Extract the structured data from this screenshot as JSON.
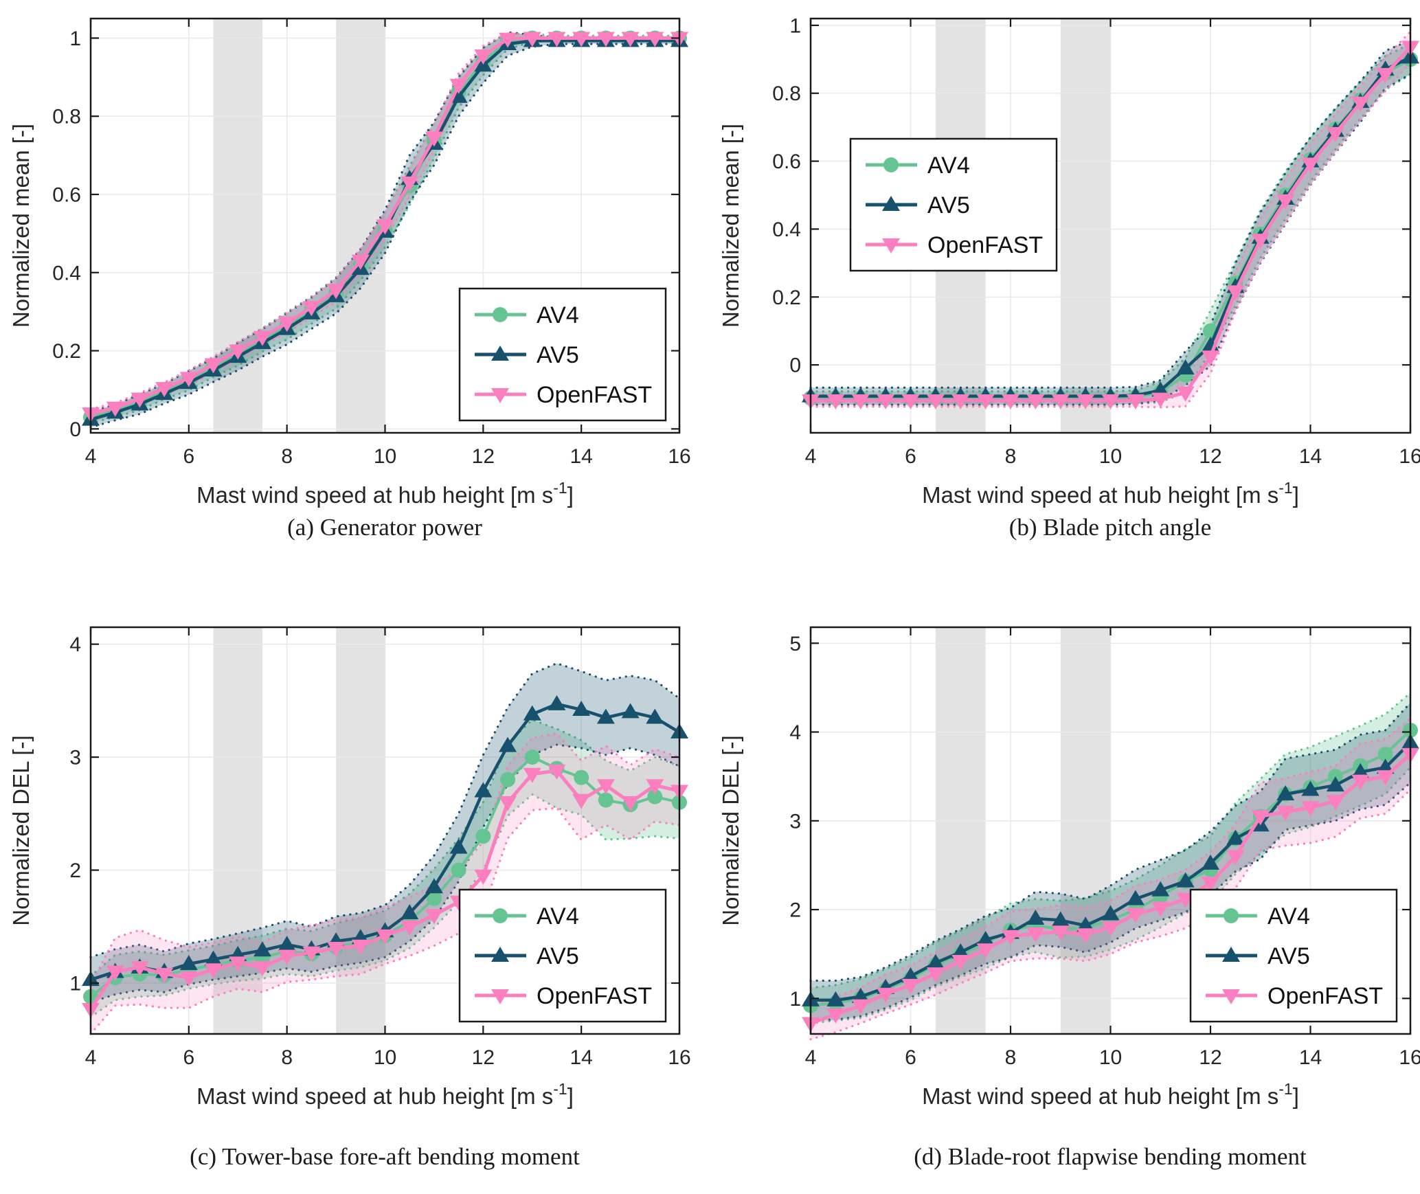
{
  "page": {
    "background": "#ffffff"
  },
  "colors": {
    "AV4": "#66C493",
    "AV5": "#17516E",
    "OpenFAST": "#FB7EBE",
    "band_gray": "#E3E3E3",
    "grid": "#EAEAEA",
    "axis": "#1A1A1A",
    "tick_text": "#262626"
  },
  "highlight_bands": [
    [
      6.5,
      7.5
    ],
    [
      9.0,
      10.0
    ]
  ],
  "x_values": [
    4,
    4.5,
    5,
    5.5,
    6,
    6.5,
    7,
    7.5,
    8,
    8.5,
    9,
    9.5,
    10,
    10.5,
    11,
    11.5,
    12,
    12.5,
    13,
    13.5,
    14,
    14.5,
    15,
    15.5,
    16
  ],
  "chart_data": [
    {
      "id": "a",
      "type": "line",
      "caption": "(a) Generator power",
      "ylabel": "Normalized mean [-]",
      "xlabel_main": "Mast wind speed at hub height [m s",
      "xlabel_sup": "-1",
      "xlabel_end": "]",
      "xlim": [
        4,
        16
      ],
      "ylim": [
        -0.01,
        1.05
      ],
      "xticks": [
        4,
        6,
        8,
        10,
        12,
        14,
        16
      ],
      "yticks": [
        0,
        0.2,
        0.4,
        0.6,
        0.8,
        1
      ],
      "grid": true,
      "legend_pos": "lower-right",
      "series": [
        {
          "name": "AV4",
          "marker": "circle",
          "values": [
            0.03,
            0.046,
            0.068,
            0.096,
            0.124,
            0.158,
            0.192,
            0.228,
            0.264,
            0.304,
            0.348,
            0.42,
            0.51,
            0.622,
            0.738,
            0.862,
            0.94,
            0.992,
            1.0,
            1.0,
            1.0,
            1.0,
            1.0,
            1.0,
            1.0
          ],
          "band": [
            0.015,
            0.015,
            0.02,
            0.02,
            0.025,
            0.025,
            0.03,
            0.03,
            0.035,
            0.035,
            0.04,
            0.04,
            0.045,
            0.05,
            0.045,
            0.04,
            0.035,
            0.02,
            0.01,
            0.006,
            0.006,
            0.006,
            0.006,
            0.006,
            0.006
          ]
        },
        {
          "name": "AV5",
          "marker": "triangle-up",
          "values": [
            0.024,
            0.042,
            0.063,
            0.09,
            0.118,
            0.15,
            0.185,
            0.22,
            0.256,
            0.296,
            0.34,
            0.41,
            0.505,
            0.64,
            0.73,
            0.85,
            0.93,
            0.985,
            0.993,
            0.993,
            0.993,
            0.993,
            0.993,
            0.993,
            0.993
          ],
          "band": [
            0.02,
            0.02,
            0.025,
            0.025,
            0.03,
            0.03,
            0.035,
            0.035,
            0.04,
            0.04,
            0.045,
            0.05,
            0.055,
            0.06,
            0.055,
            0.05,
            0.045,
            0.03,
            0.015,
            0.008,
            0.008,
            0.008,
            0.008,
            0.008,
            0.008
          ]
        },
        {
          "name": "OpenFAST",
          "marker": "triangle-down",
          "values": [
            0.039,
            0.054,
            0.077,
            0.104,
            0.13,
            0.165,
            0.2,
            0.235,
            0.271,
            0.311,
            0.355,
            0.43,
            0.52,
            0.63,
            0.745,
            0.88,
            0.955,
            0.998,
            1.0,
            1.0,
            1.0,
            1.0,
            1.0,
            1.0,
            1.0
          ],
          "band": [
            0.012,
            0.012,
            0.015,
            0.015,
            0.02,
            0.02,
            0.022,
            0.022,
            0.025,
            0.025,
            0.03,
            0.03,
            0.035,
            0.035,
            0.035,
            0.03,
            0.025,
            0.015,
            0.006,
            0.004,
            0.004,
            0.004,
            0.004,
            0.004,
            0.004
          ]
        }
      ]
    },
    {
      "id": "b",
      "type": "line",
      "caption": "(b) Blade pitch angle",
      "ylabel": "Normalized mean [-]",
      "xlabel_main": "Mast wind speed at hub height [m s",
      "xlabel_sup": "-1",
      "xlabel_end": "]",
      "xlim": [
        4,
        16
      ],
      "ylim": [
        -0.2,
        1.02
      ],
      "xticks": [
        4,
        6,
        8,
        10,
        12,
        14,
        16
      ],
      "yticks": [
        0,
        0.2,
        0.4,
        0.6,
        0.8,
        1
      ],
      "grid": true,
      "legend_pos": "mid-left",
      "series": [
        {
          "name": "AV4",
          "marker": "circle",
          "values": [
            -0.098,
            -0.098,
            -0.098,
            -0.098,
            -0.098,
            -0.098,
            -0.098,
            -0.098,
            -0.098,
            -0.098,
            -0.098,
            -0.098,
            -0.098,
            -0.095,
            -0.08,
            -0.03,
            0.1,
            0.24,
            0.385,
            0.5,
            0.605,
            0.695,
            0.78,
            0.86,
            0.9
          ],
          "band": [
            0.02,
            0.02,
            0.02,
            0.02,
            0.02,
            0.02,
            0.02,
            0.02,
            0.02,
            0.02,
            0.02,
            0.02,
            0.02,
            0.02,
            0.03,
            0.05,
            0.06,
            0.065,
            0.07,
            0.07,
            0.065,
            0.06,
            0.055,
            0.05,
            0.045
          ]
        },
        {
          "name": "AV5",
          "marker": "triangle-up",
          "values": [
            -0.092,
            -0.092,
            -0.092,
            -0.092,
            -0.092,
            -0.092,
            -0.092,
            -0.092,
            -0.092,
            -0.092,
            -0.092,
            -0.092,
            -0.092,
            -0.09,
            -0.075,
            -0.01,
            0.057,
            0.23,
            0.375,
            0.49,
            0.6,
            0.69,
            0.775,
            0.87,
            0.906
          ],
          "band": [
            0.025,
            0.025,
            0.025,
            0.025,
            0.025,
            0.025,
            0.025,
            0.025,
            0.025,
            0.025,
            0.025,
            0.025,
            0.025,
            0.025,
            0.03,
            0.05,
            0.06,
            0.07,
            0.075,
            0.075,
            0.07,
            0.065,
            0.06,
            0.055,
            0.05
          ]
        },
        {
          "name": "OpenFAST",
          "marker": "triangle-down",
          "values": [
            -0.105,
            -0.105,
            -0.105,
            -0.105,
            -0.105,
            -0.105,
            -0.105,
            -0.105,
            -0.105,
            -0.105,
            -0.105,
            -0.105,
            -0.105,
            -0.105,
            -0.1,
            -0.082,
            0.024,
            0.216,
            0.368,
            0.484,
            0.592,
            0.682,
            0.772,
            0.856,
            0.936
          ],
          "band": [
            0.018,
            0.018,
            0.018,
            0.018,
            0.018,
            0.018,
            0.018,
            0.018,
            0.018,
            0.018,
            0.018,
            0.018,
            0.018,
            0.018,
            0.025,
            0.04,
            0.05,
            0.06,
            0.065,
            0.065,
            0.06,
            0.055,
            0.05,
            0.05,
            0.045
          ]
        }
      ]
    },
    {
      "id": "c",
      "type": "line",
      "caption": "(c) Tower-base fore-aft bending moment",
      "ylabel": "Normalized DEL [-]",
      "xlabel_main": "Mast wind speed at hub height [m s",
      "xlabel_sup": "-1",
      "xlabel_end": "]",
      "xlim": [
        4,
        16
      ],
      "ylim": [
        0.55,
        4.15
      ],
      "xticks": [
        4,
        6,
        8,
        10,
        12,
        14,
        16
      ],
      "yticks": [
        1,
        2,
        3,
        4
      ],
      "grid": true,
      "legend_pos": "lower-right",
      "series": [
        {
          "name": "AV4",
          "marker": "circle",
          "values": [
            0.88,
            1.05,
            1.08,
            1.07,
            1.12,
            1.16,
            1.2,
            1.23,
            1.28,
            1.26,
            1.32,
            1.36,
            1.42,
            1.55,
            1.75,
            2.0,
            2.3,
            2.8,
            3.0,
            2.9,
            2.82,
            2.62,
            2.58,
            2.65,
            2.6
          ],
          "band": [
            0.18,
            0.2,
            0.2,
            0.18,
            0.17,
            0.17,
            0.18,
            0.19,
            0.2,
            0.2,
            0.21,
            0.22,
            0.22,
            0.24,
            0.26,
            0.28,
            0.3,
            0.32,
            0.33,
            0.35,
            0.33,
            0.35,
            0.3,
            0.35,
            0.32
          ]
        },
        {
          "name": "AV5",
          "marker": "triangle-up",
          "values": [
            1.03,
            1.1,
            1.14,
            1.1,
            1.17,
            1.21,
            1.25,
            1.29,
            1.34,
            1.3,
            1.37,
            1.4,
            1.46,
            1.62,
            1.85,
            2.2,
            2.7,
            3.1,
            3.38,
            3.47,
            3.42,
            3.35,
            3.4,
            3.35,
            3.22
          ],
          "band": [
            0.2,
            0.2,
            0.2,
            0.18,
            0.18,
            0.18,
            0.19,
            0.2,
            0.21,
            0.2,
            0.22,
            0.22,
            0.23,
            0.25,
            0.28,
            0.3,
            0.32,
            0.34,
            0.36,
            0.36,
            0.34,
            0.33,
            0.32,
            0.33,
            0.3
          ]
        },
        {
          "name": "OpenFAST",
          "marker": "triangle-down",
          "values": [
            0.77,
            1.1,
            1.14,
            1.08,
            1.05,
            1.12,
            1.18,
            1.14,
            1.24,
            1.27,
            1.31,
            1.33,
            1.42,
            1.5,
            1.6,
            1.72,
            1.95,
            2.6,
            2.85,
            2.88,
            2.62,
            2.75,
            2.6,
            2.75,
            2.7
          ],
          "band": [
            0.22,
            0.3,
            0.33,
            0.3,
            0.27,
            0.24,
            0.23,
            0.22,
            0.23,
            0.24,
            0.25,
            0.25,
            0.25,
            0.26,
            0.27,
            0.28,
            0.3,
            0.32,
            0.32,
            0.33,
            0.35,
            0.35,
            0.33,
            0.32,
            0.3
          ]
        }
      ]
    },
    {
      "id": "d",
      "type": "line",
      "caption": "(d) Blade-root flapwise bending moment",
      "ylabel": "Normalized DEL [-]",
      "xlabel_main": "Mast wind speed at hub height [m s",
      "xlabel_sup": "-1",
      "xlabel_end": "]",
      "xlim": [
        4,
        16
      ],
      "ylim": [
        0.6,
        5.18
      ],
      "xticks": [
        4,
        6,
        8,
        10,
        12,
        14,
        16
      ],
      "yticks": [
        1,
        2,
        3,
        4,
        5
      ],
      "grid": true,
      "legend_pos": "lower-right",
      "series": [
        {
          "name": "AV4",
          "marker": "circle",
          "values": [
            0.92,
            0.95,
            1.0,
            1.1,
            1.22,
            1.38,
            1.5,
            1.62,
            1.77,
            1.82,
            1.78,
            1.8,
            1.88,
            2.0,
            2.15,
            2.32,
            2.45,
            2.8,
            3.05,
            3.3,
            3.38,
            3.5,
            3.62,
            3.75,
            4.02
          ],
          "band": [
            0.2,
            0.2,
            0.22,
            0.23,
            0.24,
            0.25,
            0.26,
            0.28,
            0.3,
            0.3,
            0.32,
            0.33,
            0.33,
            0.34,
            0.35,
            0.36,
            0.38,
            0.4,
            0.42,
            0.45,
            0.45,
            0.45,
            0.45,
            0.45,
            0.42
          ]
        },
        {
          "name": "AV5",
          "marker": "triangle-up",
          "values": [
            0.98,
            0.98,
            1.02,
            1.12,
            1.25,
            1.4,
            1.52,
            1.66,
            1.74,
            1.9,
            1.88,
            1.82,
            1.95,
            2.12,
            2.22,
            2.32,
            2.52,
            2.8,
            2.95,
            3.3,
            3.35,
            3.4,
            3.55,
            3.6,
            3.88
          ],
          "band": [
            0.22,
            0.22,
            0.22,
            0.23,
            0.24,
            0.25,
            0.26,
            0.27,
            0.28,
            0.3,
            0.3,
            0.3,
            0.32,
            0.33,
            0.34,
            0.35,
            0.36,
            0.37,
            0.38,
            0.4,
            0.4,
            0.4,
            0.42,
            0.42,
            0.45
          ]
        },
        {
          "name": "OpenFAST",
          "marker": "triangle-down",
          "values": [
            0.72,
            0.82,
            0.92,
            1.05,
            1.15,
            1.28,
            1.42,
            1.55,
            1.7,
            1.73,
            1.75,
            1.72,
            1.8,
            1.95,
            2.02,
            2.12,
            2.3,
            2.6,
            3.05,
            3.1,
            3.15,
            3.22,
            3.45,
            3.5,
            3.75
          ],
          "band": [
            0.18,
            0.2,
            0.2,
            0.22,
            0.22,
            0.24,
            0.25,
            0.26,
            0.28,
            0.28,
            0.3,
            0.3,
            0.3,
            0.32,
            0.32,
            0.33,
            0.35,
            0.36,
            0.38,
            0.38,
            0.4,
            0.4,
            0.42,
            0.42,
            0.4
          ]
        }
      ]
    }
  ]
}
